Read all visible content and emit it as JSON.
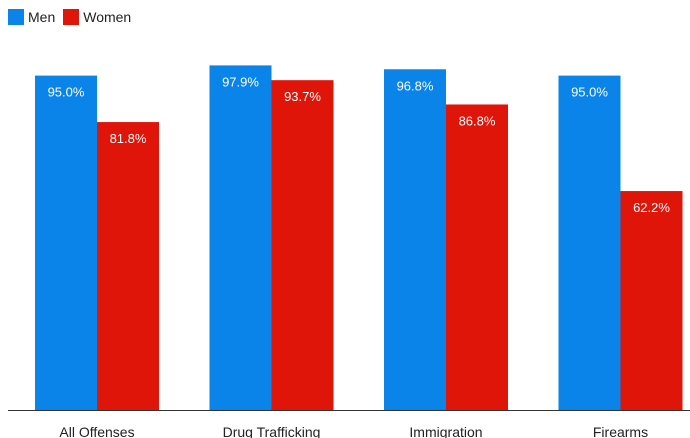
{
  "chart_data": {
    "type": "bar",
    "categories": [
      "All Offenses",
      "Drug Trafficking",
      "Immigration",
      "Firearms"
    ],
    "series": [
      {
        "name": "Men",
        "values": [
          95.0,
          97.9,
          96.8,
          95.0
        ],
        "labels": [
          "95.0%",
          "97.9%",
          "96.8%",
          "95.0%"
        ],
        "color": "#0a84e8"
      },
      {
        "name": "Women",
        "values": [
          81.8,
          93.7,
          86.8,
          62.2
        ],
        "labels": [
          "81.8%",
          "93.7%",
          "86.8%",
          "62.2%"
        ],
        "color": "#e0150a"
      }
    ],
    "ylim": [
      0,
      100
    ],
    "grid": false,
    "legend": "top-left",
    "title": "",
    "xlabel": "",
    "ylabel": ""
  }
}
